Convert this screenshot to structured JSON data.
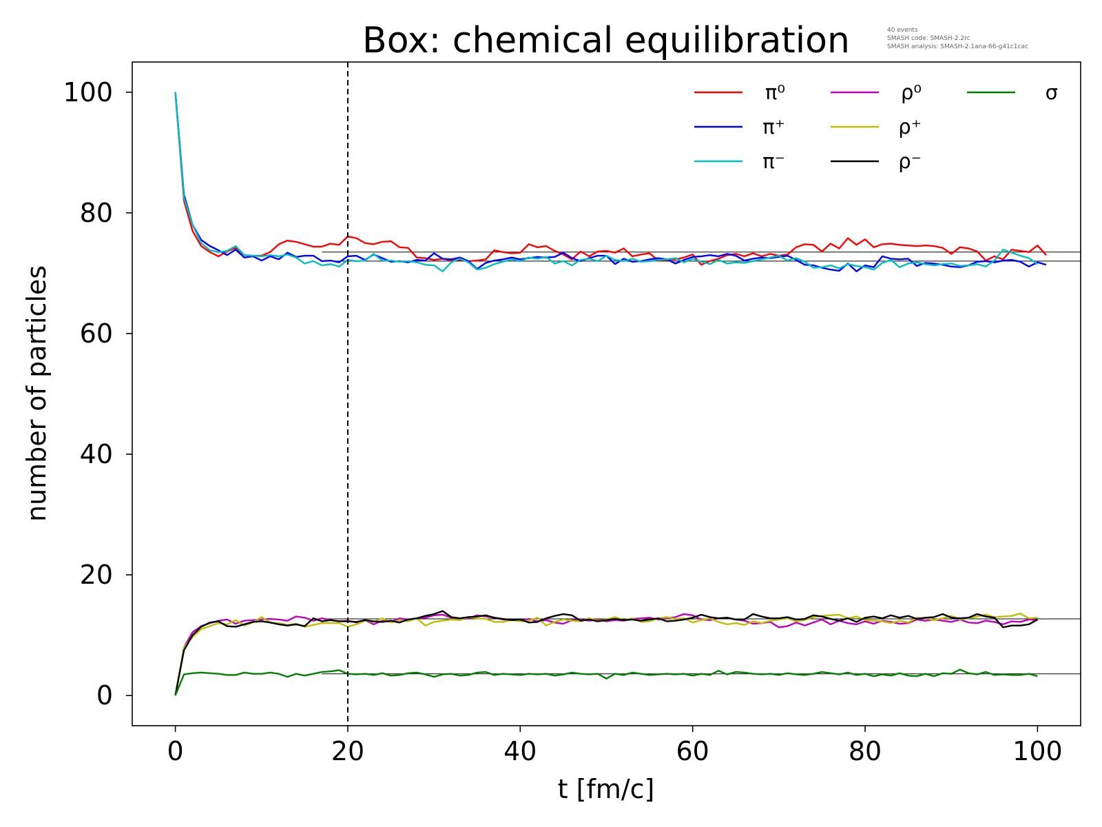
{
  "chart_data": {
    "type": "line",
    "title": "Box: chemical equilibration",
    "xlabel": "t [fm/c]",
    "ylabel": "number of particles",
    "xlim": [
      -5,
      105
    ],
    "ylim": [
      -5,
      105
    ],
    "xticks": [
      0,
      20,
      40,
      60,
      80,
      100
    ],
    "yticks": [
      0,
      20,
      40,
      60,
      80,
      100
    ],
    "grid": false,
    "legend_placement": "top-right",
    "annotation_lines": [
      "40 events",
      "SMASH code:      SMASH-2.2rc",
      "SMASH analysis: SMASH-2.1ana-66-g41c1cac"
    ],
    "vline_x": 20,
    "equilibrium_lines": [
      {
        "y": 73.5,
        "x_from": 17,
        "x_to": 105
      },
      {
        "y": 72.0,
        "x_from": 17,
        "x_to": 105
      },
      {
        "y": 12.7,
        "x_from": 17,
        "x_to": 105
      },
      {
        "y": 3.6,
        "x_from": 17,
        "x_to": 105
      }
    ],
    "x_start": 0,
    "x_step": 1,
    "series": [
      {
        "name": "π⁰",
        "color": "#ff0000",
        "values": [
          100,
          82,
          77,
          74.5,
          73.5,
          72.8,
          73.6,
          74.2,
          73.0,
          72.9,
          72.9,
          73.5,
          74.8,
          75.4,
          75.2,
          74.8,
          74.4,
          74.4,
          74.9,
          74.7,
          76.1,
          75.8,
          75.0,
          74.8,
          75.2,
          75.3,
          74.3,
          74.2,
          72.6,
          72.5,
          72.2,
          72.4,
          72.1,
          72.2,
          72.0,
          72.1,
          72.3,
          73.8,
          73.5,
          73.3,
          73.4,
          74.8,
          74.3,
          74.5,
          73.7,
          73.1,
          72.3,
          73.6,
          72.8,
          73.6,
          73.7,
          73.4,
          74.1,
          72.8,
          73.1,
          73.3,
          72.1,
          72.2,
          72.3,
          72.6,
          73.1,
          71.4,
          72.0,
          72.4,
          73.0,
          73.2,
          72.8,
          73.3,
          72.8,
          73.2,
          72.9,
          73.1,
          74.3,
          74.8,
          74.7,
          73.6,
          74.9,
          74.1,
          75.8,
          74.7,
          75.6,
          74.3,
          74.8,
          74.9,
          74.7,
          74.6,
          74.5,
          74.6,
          74.5,
          74.2,
          73.2,
          74.3,
          74.1,
          73.6,
          72.1,
          72.8,
          72.3,
          73.9,
          73.7,
          73.5,
          74.6,
          73.0
        ]
      },
      {
        "name": "π⁺",
        "color": "#0000ff",
        "values": [
          100,
          83,
          78,
          75.5,
          74.5,
          73.8,
          73.0,
          73.9,
          72.6,
          72.8,
          72.1,
          72.8,
          72.3,
          73.4,
          72.7,
          72.9,
          72.9,
          72.0,
          72.1,
          71.8,
          72.8,
          72.9,
          72.2,
          73.1,
          72.5,
          71.9,
          72.0,
          71.8,
          72.2,
          72.1,
          73.3,
          72.4,
          72.3,
          72.6,
          72.0,
          70.7,
          71.7,
          72.1,
          72.3,
          72.6,
          72.3,
          72.5,
          72.7,
          72.6,
          72.7,
          73.4,
          72.5,
          72.0,
          72.5,
          72.9,
          72.9,
          71.5,
          72.4,
          71.9,
          72.0,
          72.3,
          72.5,
          72.3,
          71.6,
          72.2,
          72.7,
          72.8,
          73.0,
          72.8,
          73.2,
          72.9,
          72.1,
          72.4,
          72.6,
          72.5,
          72.7,
          72.9,
          72.2,
          71.4,
          71.3,
          70.9,
          70.6,
          70.4,
          71.6,
          70.3,
          71.3,
          71.0,
          72.8,
          72.4,
          72.3,
          72.4,
          71.2,
          71.7,
          71.6,
          71.4,
          71.1,
          71.0,
          71.3,
          71.9,
          72.0,
          71.8,
          72.1,
          72.2,
          71.9,
          71.1,
          71.8,
          71.4
        ]
      },
      {
        "name": "π⁻",
        "color": "#00bfbf",
        "values": [
          100,
          82.5,
          78,
          75,
          73.8,
          73.5,
          73.7,
          74.5,
          73.0,
          72.9,
          72.8,
          73.0,
          72.8,
          73.1,
          72.6,
          71.6,
          72.0,
          71.3,
          71.5,
          71.1,
          72.2,
          72.0,
          72.1,
          73.2,
          72.1,
          72.1,
          71.9,
          72.0,
          71.8,
          71.4,
          71.3,
          70.3,
          71.8,
          72.4,
          71.8,
          70.6,
          70.9,
          71.5,
          71.9,
          72.3,
          72.0,
          72.6,
          72.4,
          72.7,
          71.6,
          72.0,
          71.3,
          72.2,
          72.4,
          72.0,
          72.9,
          72.2,
          72.0,
          72.4,
          71.9,
          72.0,
          72.2,
          72.3,
          72.5,
          71.8,
          72.4,
          71.9,
          71.5,
          72.2,
          71.6,
          71.8,
          71.7,
          72.0,
          72.3,
          72.6,
          72.9,
          72.1,
          72.5,
          71.9,
          70.9,
          71.0,
          71.3,
          70.8,
          71.5,
          71.2,
          71.0,
          70.6,
          71.7,
          72.2,
          71.0,
          71.6,
          71.8,
          71.5,
          71.3,
          71.5,
          71.6,
          71.2,
          71.3,
          71.5,
          71.1,
          72.1,
          73.9,
          73.4,
          72.9,
          72.5,
          71.5
        ]
      },
      {
        "name": "ρ⁰",
        "color": "#bf00bf",
        "values": [
          0,
          8,
          10.5,
          11.5,
          12.0,
          12.4,
          12.6,
          11.9,
          12.4,
          12.5,
          12.6,
          12.7,
          12.6,
          12.4,
          13.1,
          12.9,
          12.4,
          12.8,
          12.5,
          12.3,
          12.4,
          12.1,
          12.5,
          11.8,
          12.4,
          12.2,
          12.8,
          12.6,
          12.8,
          12.9,
          13.3,
          13.4,
          12.9,
          12.6,
          12.8,
          13.3,
          13.1,
          12.9,
          12.6,
          12.5,
          12.4,
          12.7,
          12.3,
          12.5,
          12.1,
          11.9,
          12.5,
          12.6,
          12.4,
          12.6,
          12.3,
          12.5,
          12.4,
          12.7,
          12.8,
          12.9,
          12.6,
          12.8,
          13.0,
          13.5,
          13.3,
          12.6,
          12.5,
          12.8,
          12.9,
          12.6,
          12.4,
          11.9,
          12.0,
          12.2,
          11.3,
          11.5,
          12.1,
          11.6,
          12.1,
          12.6,
          11.8,
          12.4,
          12.0,
          11.8,
          12.3,
          11.9,
          12.4,
          12.2,
          11.9,
          12.0,
          12.6,
          12.4,
          12.6,
          12.4,
          12.2,
          12.6,
          12.1,
          12.0,
          12.4,
          12.2,
          11.8,
          12.3,
          12.2,
          12.6,
          12.5
        ]
      },
      {
        "name": "ρ⁺",
        "color": "#bfbf00",
        "values": [
          0,
          8,
          9.7,
          11.0,
          11.5,
          12.0,
          11.8,
          12.5,
          11.6,
          12.1,
          13.0,
          12.1,
          12.0,
          11.7,
          11.9,
          11.4,
          11.7,
          12.0,
          12.0,
          12.0,
          11.4,
          11.8,
          12.4,
          12.2,
          12.8,
          12.1,
          12.5,
          12.3,
          12.8,
          11.6,
          12.2,
          12.4,
          12.6,
          12.5,
          13.0,
          12.8,
          12.7,
          12.2,
          12.2,
          12.5,
          12.3,
          12.4,
          12.9,
          11.6,
          12.2,
          12.6,
          12.4,
          12.3,
          12.8,
          12.4,
          12.6,
          13.0,
          12.5,
          12.8,
          12.2,
          12.3,
          12.8,
          13.0,
          12.7,
          12.8,
          12.1,
          12.5,
          12.8,
          12.2,
          11.8,
          12.0,
          11.7,
          12.3,
          12.0,
          12.4,
          12.6,
          12.8,
          12.3,
          12.5,
          13.0,
          13.2,
          13.3,
          13.4,
          12.8,
          13.1,
          12.5,
          12.4,
          12.3,
          12.0,
          12.4,
          12.1,
          12.9,
          12.8,
          12.5,
          12.8,
          13.2,
          12.6,
          12.8,
          13.1,
          13.4,
          13.0,
          13.1,
          13.2,
          13.6,
          12.8,
          12.9
        ]
      },
      {
        "name": "ρ⁻",
        "color": "#000000",
        "values": [
          0,
          7.5,
          10.0,
          11.4,
          12.1,
          12.3,
          11.5,
          11.4,
          11.8,
          12.2,
          12.3,
          12.1,
          11.8,
          11.6,
          11.8,
          11.5,
          12.8,
          12.3,
          12.5,
          12.3,
          12.3,
          12.2,
          12.5,
          12.3,
          12.2,
          12.4,
          12.1,
          12.6,
          12.8,
          13.2,
          13.5,
          14.0,
          13.0,
          12.8,
          13.0,
          13.1,
          13.3,
          12.9,
          12.7,
          12.5,
          12.6,
          12.1,
          12.2,
          12.8,
          13.2,
          13.5,
          13.3,
          12.4,
          12.6,
          12.3,
          12.5,
          12.7,
          12.5,
          12.6,
          12.4,
          12.6,
          12.8,
          12.3,
          12.4,
          12.6,
          12.9,
          13.4,
          13.0,
          12.8,
          12.9,
          12.6,
          12.6,
          13.5,
          13.1,
          12.8,
          12.8,
          13.0,
          12.6,
          12.7,
          13.3,
          13.1,
          12.7,
          12.4,
          12.8,
          12.2,
          12.9,
          13.1,
          12.8,
          13.3,
          12.9,
          13.2,
          12.7,
          12.9,
          13.0,
          13.5,
          12.9,
          12.8,
          12.9,
          13.5,
          13.1,
          12.9,
          11.3,
          11.6,
          11.6,
          11.8,
          12.6
        ]
      },
      {
        "name": "σ",
        "color": "#008000",
        "values": [
          0,
          3.5,
          3.7,
          3.8,
          3.7,
          3.6,
          3.4,
          3.4,
          3.8,
          3.6,
          3.6,
          3.8,
          3.6,
          3.1,
          3.6,
          3.3,
          3.6,
          3.9,
          4.0,
          4.2,
          3.6,
          3.5,
          3.6,
          3.4,
          3.7,
          3.3,
          3.4,
          3.7,
          3.8,
          3.5,
          3.1,
          3.5,
          3.6,
          3.3,
          3.4,
          3.8,
          3.9,
          3.4,
          3.6,
          3.5,
          3.4,
          3.6,
          3.5,
          3.6,
          3.3,
          3.5,
          3.8,
          3.6,
          3.5,
          3.6,
          2.8,
          3.6,
          3.4,
          3.8,
          3.6,
          3.4,
          3.5,
          3.6,
          3.5,
          3.6,
          3.3,
          3.6,
          3.4,
          4.1,
          3.5,
          3.9,
          3.8,
          3.6,
          3.5,
          3.6,
          3.4,
          3.7,
          3.5,
          3.4,
          3.6,
          3.9,
          3.7,
          3.5,
          3.8,
          3.4,
          3.6,
          3.2,
          3.5,
          3.3,
          3.7,
          3.3,
          3.2,
          3.6,
          3.2,
          3.7,
          3.6,
          4.3,
          3.7,
          3.5,
          3.9,
          3.4,
          3.5,
          3.4,
          3.4,
          3.6,
          3.2
        ]
      }
    ]
  }
}
